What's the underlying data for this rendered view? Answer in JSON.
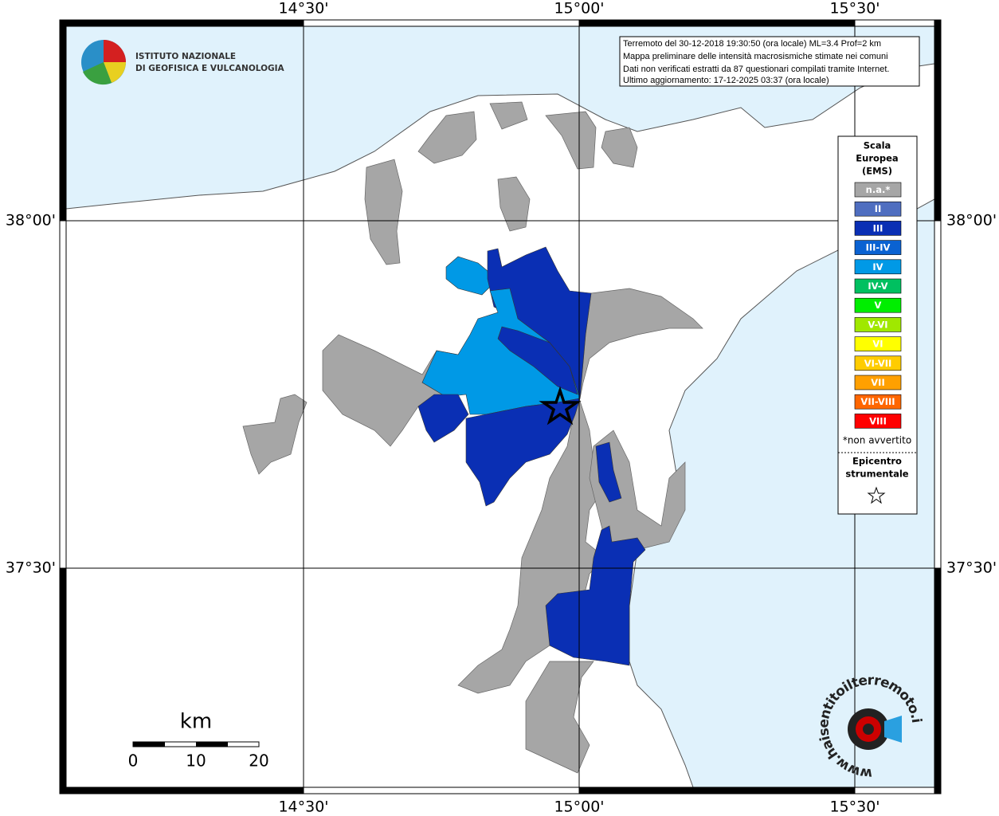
{
  "header": {
    "institute": [
      "ISTITUTO NAZIONALE",
      "DI GEOFISICA E VULCANOLOGIA"
    ]
  },
  "info": [
    "Terremoto del 30-12-2018 19:30:50 (ora locale) ML=3.4 Prof=2 km",
    "Mappa preliminare delle intensità macrosismiche stimate nei comuni",
    "Dati non verificati estratti da 87 questionari compilati tramite Internet.",
    "Ultimo aggiornamento: 17-12-2025 03:37 (ora locale)"
  ],
  "grid": {
    "lon_labels": [
      "14°30'",
      "15°00'",
      "15°30'"
    ],
    "lat_labels": [
      "38°00'",
      "37°30'"
    ]
  },
  "legend": {
    "title": [
      "Scala",
      "Europea",
      "(EMS)"
    ],
    "items": [
      {
        "label": "n.a.*",
        "color": "#a6a6a6"
      },
      {
        "label": "II",
        "color": "#4f6ec0"
      },
      {
        "label": "III",
        "color": "#0a2fb4"
      },
      {
        "label": "III-IV",
        "color": "#0a62d2"
      },
      {
        "label": "IV",
        "color": "#0099e6"
      },
      {
        "label": "IV-V",
        "color": "#00c060"
      },
      {
        "label": "V",
        "color": "#00ee00"
      },
      {
        "label": "V-VI",
        "color": "#a0e800"
      },
      {
        "label": "VI",
        "color": "#ffff00"
      },
      {
        "label": "VI-VII",
        "color": "#ffcc00"
      },
      {
        "label": "VII",
        "color": "#ffa000"
      },
      {
        "label": "VII-VIII",
        "color": "#ff6600"
      },
      {
        "label": "VIII",
        "color": "#ff0000"
      }
    ],
    "note": "*non avvertito",
    "epicenter": [
      "Epicentro",
      "strumentale"
    ]
  },
  "scale_bar": {
    "unit": "km",
    "ticks": [
      0,
      10,
      20
    ]
  },
  "watermark": "www.haisentitoilterremoto.it"
}
